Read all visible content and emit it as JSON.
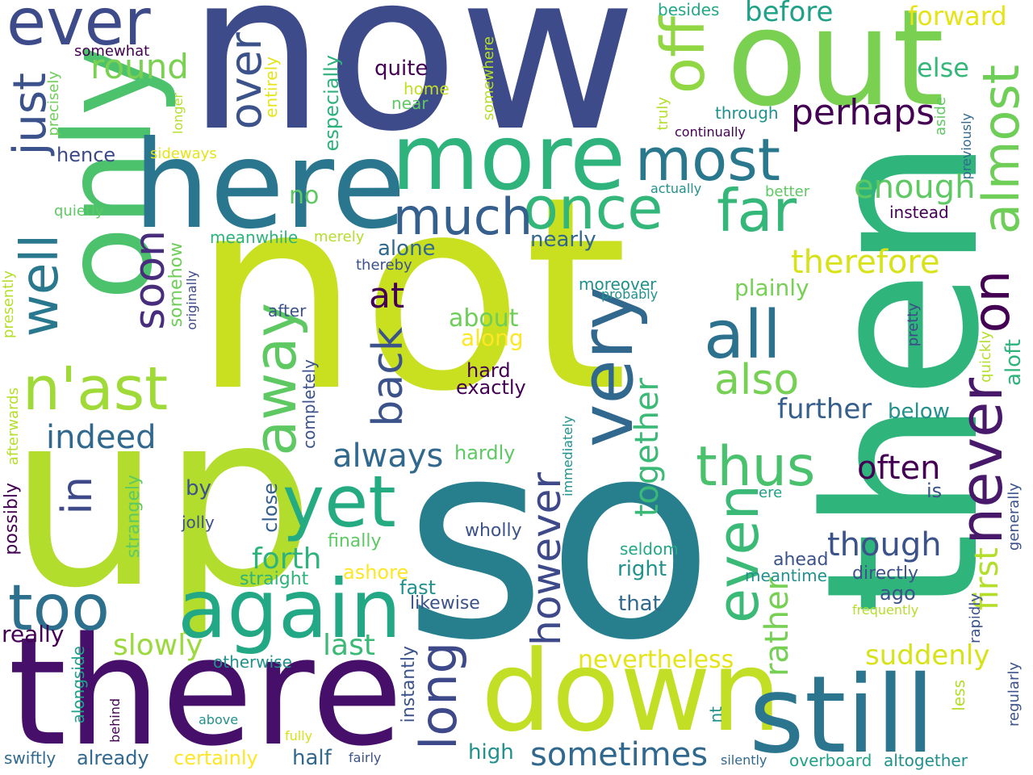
{
  "palette": [
    "#440154",
    "#3b528b",
    "#21918c",
    "#5ec962",
    "#fde725"
  ],
  "words": [
    {
      "text": "now",
      "color": "#3e4b8a"
    },
    {
      "text": "not",
      "color": "#c8e020"
    },
    {
      "text": "then",
      "color": "#2fb47c"
    },
    {
      "text": "so",
      "color": "#277f8e"
    },
    {
      "text": "up",
      "color": "#b2dd2c"
    },
    {
      "text": "there",
      "color": "#46106a"
    },
    {
      "text": "only",
      "color": "#4cc26c"
    },
    {
      "text": "here",
      "color": "#2a768e"
    },
    {
      "text": "out",
      "color": "#7ad151"
    },
    {
      "text": "more",
      "color": "#2eb37c"
    },
    {
      "text": "down",
      "color": "#c3df25"
    },
    {
      "text": "still",
      "color": "#2b758e"
    },
    {
      "text": "again",
      "color": "#22a884"
    },
    {
      "text": "most",
      "color": "#29788e"
    },
    {
      "text": "ever",
      "color": "#3e4b8a"
    },
    {
      "text": "very",
      "color": "#31688e"
    },
    {
      "text": "yet",
      "color": "#25ab82"
    },
    {
      "text": "all",
      "color": "#2c728e"
    },
    {
      "text": "far",
      "color": "#35b779"
    },
    {
      "text": "once",
      "color": "#33b67a"
    },
    {
      "text": "much",
      "color": "#355f8d"
    },
    {
      "text": "off",
      "color": "#90d743"
    },
    {
      "text": "too",
      "color": "#2d708e"
    },
    {
      "text": "almost",
      "color": "#6ece58"
    },
    {
      "text": "never",
      "color": "#48186a"
    },
    {
      "text": "even",
      "color": "#3aba76"
    },
    {
      "text": "away",
      "color": "#5ec962"
    },
    {
      "text": "just",
      "color": "#3b528b"
    },
    {
      "text": "well",
      "color": "#2a788e"
    },
    {
      "text": "thus",
      "color": "#4ac16d"
    },
    {
      "text": "n'ast",
      "color": "#a0da39"
    },
    {
      "text": "sometimes",
      "color": "#31688e"
    },
    {
      "text": "over",
      "color": "#3b528b"
    },
    {
      "text": "soon",
      "color": "#472d7b"
    },
    {
      "text": "long",
      "color": "#3e4989"
    },
    {
      "text": "back",
      "color": "#3b528b"
    },
    {
      "text": "also",
      "color": "#75d054"
    },
    {
      "text": "however",
      "color": "#3e4989"
    },
    {
      "text": "on",
      "color": "#440154"
    },
    {
      "text": "perhaps",
      "color": "#440154"
    },
    {
      "text": "round",
      "color": "#7ad151"
    },
    {
      "text": "in",
      "color": "#3e4989"
    },
    {
      "text": "indeed",
      "color": "#31688e"
    },
    {
      "text": "always",
      "color": "#31688e"
    },
    {
      "text": "together",
      "color": "#3aba76"
    },
    {
      "text": "therefore",
      "color": "#d8e219"
    },
    {
      "text": "enough",
      "color": "#5ec962"
    },
    {
      "text": "first",
      "color": "#b5de2b"
    },
    {
      "text": "though",
      "color": "#3b528b"
    },
    {
      "text": "rather",
      "color": "#75d054"
    },
    {
      "text": "often",
      "color": "#440154"
    },
    {
      "text": "further",
      "color": "#355f8d"
    },
    {
      "text": "suddenly",
      "color": "#d8e219"
    },
    {
      "text": "nevertheless",
      "color": "#e5e419"
    },
    {
      "text": "forth",
      "color": "#2eb37c"
    },
    {
      "text": "last",
      "color": "#3aba76"
    },
    {
      "text": "slowly",
      "color": "#9bd93c"
    },
    {
      "text": "really",
      "color": "#440154"
    },
    {
      "text": "before",
      "color": "#1fa187"
    },
    {
      "text": "forward",
      "color": "#e5e419"
    },
    {
      "text": "else",
      "color": "#35b779"
    },
    {
      "text": "quite",
      "color": "#440154"
    },
    {
      "text": "home",
      "color": "#c2df23"
    },
    {
      "text": "near",
      "color": "#5ec962"
    },
    {
      "text": "especially",
      "color": "#2db27d"
    },
    {
      "text": "entirely",
      "color": "#e5e419"
    },
    {
      "text": "somewhat",
      "color": "#440154"
    },
    {
      "text": "precisely",
      "color": "#6ece58"
    },
    {
      "text": "hence",
      "color": "#3e4989"
    },
    {
      "text": "sideways",
      "color": "#e5e419"
    },
    {
      "text": "no",
      "color": "#5ec962"
    },
    {
      "text": "quietly",
      "color": "#5ec962"
    },
    {
      "text": "meanwhile",
      "color": "#2eb37c"
    },
    {
      "text": "merely",
      "color": "#b5de2b"
    },
    {
      "text": "alone",
      "color": "#31688e"
    },
    {
      "text": "nearly",
      "color": "#31688e"
    },
    {
      "text": "thereby",
      "color": "#3b528b"
    },
    {
      "text": "at",
      "color": "#440154"
    },
    {
      "text": "about",
      "color": "#6ece58"
    },
    {
      "text": "along",
      "color": "#fde725"
    },
    {
      "text": "hard",
      "color": "#440154"
    },
    {
      "text": "exactly",
      "color": "#440154"
    },
    {
      "text": "moreover",
      "color": "#21918c"
    },
    {
      "text": "probably",
      "color": "#21918c"
    },
    {
      "text": "plainly",
      "color": "#75d054"
    },
    {
      "text": "somehow",
      "color": "#6ece58"
    },
    {
      "text": "originally",
      "color": "#3e4989"
    },
    {
      "text": "presently",
      "color": "#b5de2b"
    },
    {
      "text": "after",
      "color": "#3b528b"
    },
    {
      "text": "completely",
      "color": "#3b528b"
    },
    {
      "text": "afterwards",
      "color": "#b5de2b"
    },
    {
      "text": "possibly",
      "color": "#440154"
    },
    {
      "text": "strangely",
      "color": "#5ec962"
    },
    {
      "text": "by",
      "color": "#3b528b"
    },
    {
      "text": "jolly",
      "color": "#3b528b"
    },
    {
      "text": "close",
      "color": "#355f8d"
    },
    {
      "text": "finally",
      "color": "#5ec962"
    },
    {
      "text": "straight",
      "color": "#2eb37c"
    },
    {
      "text": "ashore",
      "color": "#fde725"
    },
    {
      "text": "fast",
      "color": "#21918c"
    },
    {
      "text": "likewise",
      "color": "#3b528b"
    },
    {
      "text": "hardly",
      "color": "#5ec962"
    },
    {
      "text": "wholly",
      "color": "#3b528b"
    },
    {
      "text": "immediately",
      "color": "#21918c"
    },
    {
      "text": "seldom",
      "color": "#22a884"
    },
    {
      "text": "right",
      "color": "#21918c"
    },
    {
      "text": "that",
      "color": "#31688e"
    },
    {
      "text": "ahead",
      "color": "#3b528b"
    },
    {
      "text": "meantime",
      "color": "#21918c"
    },
    {
      "text": "directly",
      "color": "#3b528b"
    },
    {
      "text": "ago",
      "color": "#3b528b"
    },
    {
      "text": "frequently",
      "color": "#b5de2b"
    },
    {
      "text": "is",
      "color": "#3b528b"
    },
    {
      "text": "ere",
      "color": "#1fa187"
    },
    {
      "text": "generally",
      "color": "#3b528b"
    },
    {
      "text": "below",
      "color": "#21918c"
    },
    {
      "text": "aloft",
      "color": "#2eb37c"
    },
    {
      "text": "quickly",
      "color": "#b5de2b"
    },
    {
      "text": "pretty",
      "color": "#3e4989"
    },
    {
      "text": "rapidly",
      "color": "#3b528b"
    },
    {
      "text": "less",
      "color": "#b5de2b"
    },
    {
      "text": "regularly",
      "color": "#3b528b"
    },
    {
      "text": "nt",
      "color": "#21918c"
    },
    {
      "text": "otherwise",
      "color": "#21918c"
    },
    {
      "text": "alongside",
      "color": "#1fa187"
    },
    {
      "text": "behind",
      "color": "#440154"
    },
    {
      "text": "above",
      "color": "#21918c"
    },
    {
      "text": "fully",
      "color": "#d8e219"
    },
    {
      "text": "instantly",
      "color": "#3b528b"
    },
    {
      "text": "high",
      "color": "#21918c"
    },
    {
      "text": "half",
      "color": "#31688e"
    },
    {
      "text": "fairly",
      "color": "#3b528b"
    },
    {
      "text": "certainly",
      "color": "#fde725"
    },
    {
      "text": "already",
      "color": "#31688e"
    },
    {
      "text": "swiftly",
      "color": "#31688e"
    },
    {
      "text": "silently",
      "color": "#31688e"
    },
    {
      "text": "overboard",
      "color": "#1fa187"
    },
    {
      "text": "altogether",
      "color": "#21918c"
    },
    {
      "text": "besides",
      "color": "#22a884"
    },
    {
      "text": "somewhere",
      "color": "#b5de2b"
    },
    {
      "text": "longer",
      "color": "#b5de2b"
    },
    {
      "text": "truly",
      "color": "#b5de2b"
    },
    {
      "text": "through",
      "color": "#21918c"
    },
    {
      "text": "continually",
      "color": "#440154"
    },
    {
      "text": "actually",
      "color": "#21918c"
    },
    {
      "text": "aside",
      "color": "#5ec962"
    },
    {
      "text": "previously",
      "color": "#31688e"
    },
    {
      "text": "better",
      "color": "#5ec962"
    },
    {
      "text": "instead",
      "color": "#440154"
    }
  ]
}
